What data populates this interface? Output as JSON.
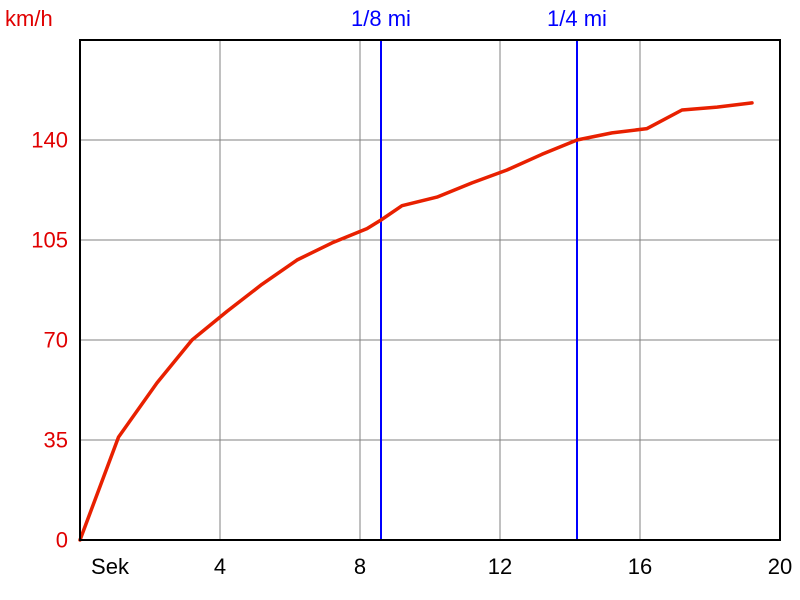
{
  "chart_data": {
    "type": "line",
    "ylabel": "km/h",
    "xlabel": "Sek",
    "xlim": [
      0,
      20
    ],
    "ylim": [
      0,
      175
    ],
    "x_ticks": [
      4,
      8,
      12,
      16,
      20
    ],
    "x_tick_labels": [
      "4",
      "8",
      "12",
      "16",
      "20"
    ],
    "y_ticks": [
      0,
      35,
      70,
      105,
      140
    ],
    "y_tick_labels": [
      "0",
      "35",
      "70",
      "105",
      "140"
    ],
    "grid": true,
    "markers": [
      {
        "label": "1/8 mi",
        "x": 8.6,
        "color": "#0000ff"
      },
      {
        "label": "1/4 mi",
        "x": 14.2,
        "color": "#0000ff"
      }
    ],
    "series": [
      {
        "color": "#e82000",
        "x": [
          0,
          1.1,
          2.2,
          3.2,
          4.2,
          5.2,
          6.2,
          7.2,
          8.2,
          8.6,
          9.2,
          10.2,
          11.2,
          12.2,
          13.2,
          14.2,
          15.2,
          16.2,
          17.2,
          18.2,
          19.2
        ],
        "y": [
          0,
          36,
          55,
          70,
          80,
          89.5,
          98,
          104,
          109,
          112,
          117,
          120,
          125,
          129.5,
          135,
          140,
          142.5,
          144,
          150.5,
          151.5,
          153
        ]
      }
    ]
  }
}
